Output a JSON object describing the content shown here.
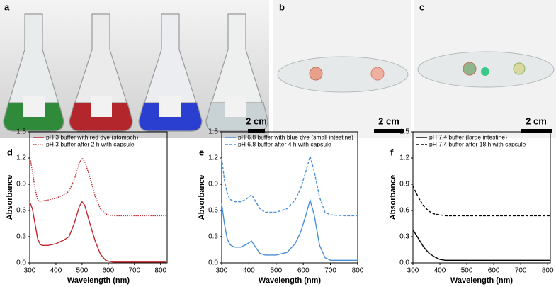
{
  "photos": [
    {
      "panel": "a",
      "scale_bar": "2 cm"
    },
    {
      "panel": "b",
      "scale_bar": "2 cm"
    },
    {
      "panel": "c",
      "scale_bar": "2 cm"
    }
  ],
  "chart_data": [
    {
      "type": "line",
      "panel": "d",
      "x_label": "Wavelength (nm)",
      "y_label": "Absorbance",
      "x": [
        300,
        310,
        320,
        330,
        340,
        350,
        370,
        400,
        430,
        450,
        470,
        490,
        500,
        510,
        530,
        550,
        570,
        590,
        600,
        620,
        650,
        700,
        750,
        800,
        820
      ],
      "series": [
        {
          "name": "pH 3 buffer with red dye (stomach)",
          "color": "#c0272d",
          "linestyle": "solid",
          "values": [
            0.7,
            0.62,
            0.45,
            0.28,
            0.21,
            0.2,
            0.2,
            0.22,
            0.26,
            0.3,
            0.45,
            0.65,
            0.7,
            0.66,
            0.45,
            0.25,
            0.1,
            0.03,
            0.02,
            0.01,
            0.01,
            0.01,
            0.01,
            0.01,
            0.01
          ]
        },
        {
          "name": "pH 3 buffer after 2 h with capsule",
          "color": "#c0272d",
          "linestyle": "dotted",
          "values": [
            1.22,
            1.05,
            0.85,
            0.72,
            0.7,
            0.71,
            0.72,
            0.74,
            0.78,
            0.82,
            0.95,
            1.15,
            1.2,
            1.16,
            0.98,
            0.76,
            0.62,
            0.56,
            0.55,
            0.54,
            0.54,
            0.54,
            0.54,
            0.54,
            0.54
          ]
        }
      ],
      "xlim": [
        300,
        825
      ],
      "xticks": [
        300,
        400,
        500,
        600,
        700,
        800
      ],
      "ylim": [
        0,
        1.5
      ],
      "yticks": [
        {
          "value": 0,
          "label": "0.0"
        },
        0.3,
        0.6,
        0.9,
        1.2,
        1.5
      ],
      "legend": "upper left"
    },
    {
      "type": "line",
      "panel": "e",
      "x_label": "Wavelength (nm)",
      "y_label": "Absorbance",
      "x": [
        300,
        310,
        320,
        330,
        340,
        350,
        370,
        390,
        410,
        420,
        440,
        460,
        500,
        540,
        570,
        590,
        610,
        625,
        640,
        660,
        680,
        700,
        750,
        800
      ],
      "series": [
        {
          "name": "pH 6.8 buffer with blue dye (small intestine)",
          "color": "#4a8fd8",
          "linestyle": "solid",
          "values": [
            0.68,
            0.45,
            0.28,
            0.21,
            0.19,
            0.18,
            0.18,
            0.21,
            0.25,
            0.2,
            0.11,
            0.09,
            0.09,
            0.12,
            0.22,
            0.35,
            0.55,
            0.72,
            0.55,
            0.2,
            0.06,
            0.03,
            0.03,
            0.03
          ]
        },
        {
          "name": "pH 6.8 buffer after 4 h with capsule",
          "color": "#4a8fd8",
          "linestyle": "dashed",
          "values": [
            1.2,
            0.95,
            0.8,
            0.73,
            0.71,
            0.7,
            0.7,
            0.73,
            0.78,
            0.73,
            0.62,
            0.58,
            0.58,
            0.62,
            0.72,
            0.85,
            1.05,
            1.22,
            1.05,
            0.75,
            0.58,
            0.55,
            0.54,
            0.54
          ]
        }
      ],
      "xlim": [
        300,
        800
      ],
      "xticks": [
        300,
        400,
        500,
        600,
        700,
        800
      ],
      "ylim": [
        0,
        1.5
      ],
      "yticks": [
        {
          "value": 0,
          "label": "0.0"
        },
        0.3,
        0.6,
        0.9,
        1.2,
        1.5
      ],
      "legend": "upper left"
    },
    {
      "type": "line",
      "panel": "f",
      "x_label": "Wavelength (nm)",
      "y_label": "Absorbance",
      "x": [
        300,
        320,
        340,
        360,
        380,
        400,
        420,
        450,
        500,
        600,
        700,
        800,
        810
      ],
      "series": [
        {
          "name": "pH 7.4 buffer (large intestine)",
          "color": "#000000",
          "linestyle": "solid",
          "values": [
            0.38,
            0.28,
            0.18,
            0.11,
            0.07,
            0.04,
            0.03,
            0.03,
            0.03,
            0.03,
            0.03,
            0.03,
            0.03
          ]
        },
        {
          "name": "pH 7.4 buffer after 18 h with capsule",
          "color": "#000000",
          "linestyle": "dashed",
          "values": [
            0.88,
            0.75,
            0.65,
            0.59,
            0.56,
            0.55,
            0.54,
            0.54,
            0.54,
            0.54,
            0.54,
            0.54,
            0.54
          ]
        }
      ],
      "xlim": [
        300,
        810
      ],
      "xticks": [
        300,
        400,
        500,
        600,
        700,
        800
      ],
      "ylim": [
        0,
        1.5
      ],
      "yticks": [
        {
          "value": 0,
          "label": "0.0"
        },
        0.3,
        0.6,
        0.9,
        1.2,
        1.5
      ],
      "legend": "upper left"
    }
  ]
}
